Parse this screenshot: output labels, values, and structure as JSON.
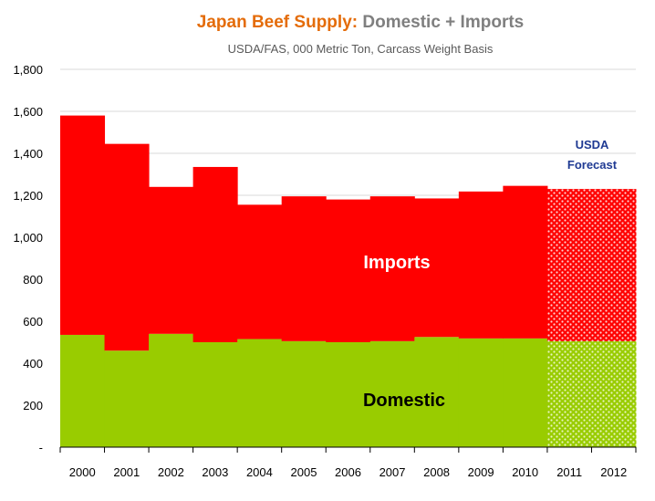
{
  "title": {
    "part1": "Japan Beef Supply",
    "colon": ":",
    "part2": " Domestic + Imports"
  },
  "subtitle": "USDA/FAS, 000 Metric Ton, Carcass Weight Basis",
  "forecast_label": [
    "USDA",
    "Forecast"
  ],
  "colors": {
    "domestic": "#99cc00",
    "imports": "#ff0000",
    "title_accent": "#e46c0a"
  },
  "chart_data": {
    "type": "bar",
    "stacked": true,
    "categories": [
      "2000",
      "2001",
      "2002",
      "2003",
      "2004",
      "2005",
      "2006",
      "2007",
      "2008",
      "2009",
      "2010",
      "2011",
      "2012"
    ],
    "series": [
      {
        "name": "Domestic",
        "values": [
          535,
          460,
          540,
          500,
          515,
          505,
          500,
          505,
          525,
          518,
          518,
          505,
          505
        ]
      },
      {
        "name": "Imports",
        "values": [
          1045,
          985,
          700,
          835,
          640,
          690,
          680,
          690,
          660,
          700,
          727,
          725,
          725
        ]
      }
    ],
    "forecast_categories": [
      "2011",
      "2012"
    ],
    "ylim": [
      0,
      1800
    ],
    "yticks": [
      "-",
      "200",
      "400",
      "600",
      "800",
      "1,000",
      "1,200",
      "1,400",
      "1,600",
      "1,800"
    ],
    "grid": true
  }
}
